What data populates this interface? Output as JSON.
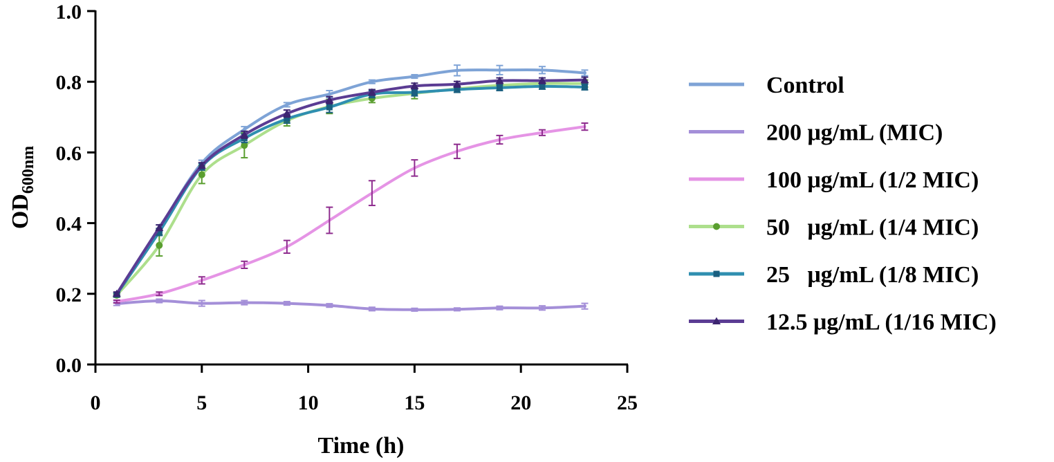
{
  "chart_data": {
    "type": "line",
    "title": "",
    "xlabel": "Time (h)",
    "ylabel_main": "OD",
    "ylabel_sub": "600nm",
    "xlim": [
      0,
      25
    ],
    "ylim": [
      0,
      1.0
    ],
    "x_ticks": [
      "0",
      "5",
      "10",
      "15",
      "20",
      "25"
    ],
    "y_ticks": [
      "0.0",
      "0.2",
      "0.4",
      "0.6",
      "0.8",
      "1.0"
    ],
    "grid": false,
    "legend_position": "right",
    "x": [
      1,
      3,
      5,
      7,
      9,
      11,
      13,
      15,
      17,
      19,
      21,
      23
    ],
    "series": [
      {
        "name": "Control",
        "color": "#7ea3d6",
        "marker": "dot",
        "values": [
          0.195,
          0.385,
          0.57,
          0.665,
          0.735,
          0.765,
          0.8,
          0.815,
          0.832,
          0.833,
          0.833,
          0.825
        ],
        "errors": [
          0.005,
          0.01,
          0.008,
          0.008,
          0.006,
          0.01,
          0.005,
          0.005,
          0.015,
          0.013,
          0.01,
          0.008
        ]
      },
      {
        "name": "200 μg/mL (MIC)",
        "color": "#a48fd8",
        "marker": "dot",
        "values": [
          0.172,
          0.18,
          0.173,
          0.175,
          0.173,
          0.167,
          0.157,
          0.155,
          0.156,
          0.16,
          0.16,
          0.165
        ],
        "errors": [
          0.005,
          0.005,
          0.008,
          0.006,
          0.005,
          0.005,
          0.005,
          0.004,
          0.004,
          0.005,
          0.006,
          0.008
        ]
      },
      {
        "name": "100 μg/mL (1/2 MIC)",
        "color": "#e594e5",
        "errorColor": "#8e2b8e",
        "marker": "none",
        "values": [
          0.178,
          0.2,
          0.238,
          0.282,
          0.333,
          0.408,
          0.485,
          0.556,
          0.603,
          0.636,
          0.656,
          0.673
        ],
        "errors": [
          0.004,
          0.005,
          0.01,
          0.01,
          0.018,
          0.037,
          0.035,
          0.023,
          0.02,
          0.012,
          0.008,
          0.01
        ]
      },
      {
        "name": "50   μg/mL (1/4 MIC)",
        "color": "#addf8c",
        "markerColor": "#5a9e2f",
        "marker": "circle",
        "values": [
          0.196,
          0.337,
          0.537,
          0.62,
          0.69,
          0.73,
          0.753,
          0.767,
          0.78,
          0.79,
          0.795,
          0.795
        ],
        "errors": [
          0.005,
          0.03,
          0.025,
          0.035,
          0.015,
          0.02,
          0.012,
          0.015,
          0.01,
          0.01,
          0.01,
          0.01
        ]
      },
      {
        "name": "25   μg/mL (1/8 MIC)",
        "color": "#2f8fb0",
        "markerColor": "#1a5f80",
        "marker": "square",
        "values": [
          0.198,
          0.375,
          0.56,
          0.64,
          0.695,
          0.728,
          0.765,
          0.77,
          0.778,
          0.783,
          0.787,
          0.785
        ],
        "errors": [
          0.005,
          0.01,
          0.01,
          0.012,
          0.012,
          0.015,
          0.01,
          0.01,
          0.008,
          0.008,
          0.008,
          0.008
        ]
      },
      {
        "name": "12.5 μg/mL (1/16 MIC)",
        "color": "#5b3c93",
        "markerColor": "#3c2570",
        "marker": "triangle",
        "values": [
          0.2,
          0.387,
          0.563,
          0.65,
          0.71,
          0.748,
          0.77,
          0.788,
          0.793,
          0.803,
          0.803,
          0.805
        ],
        "errors": [
          0.005,
          0.008,
          0.008,
          0.01,
          0.01,
          0.01,
          0.008,
          0.008,
          0.008,
          0.008,
          0.008,
          0.008
        ]
      }
    ]
  }
}
